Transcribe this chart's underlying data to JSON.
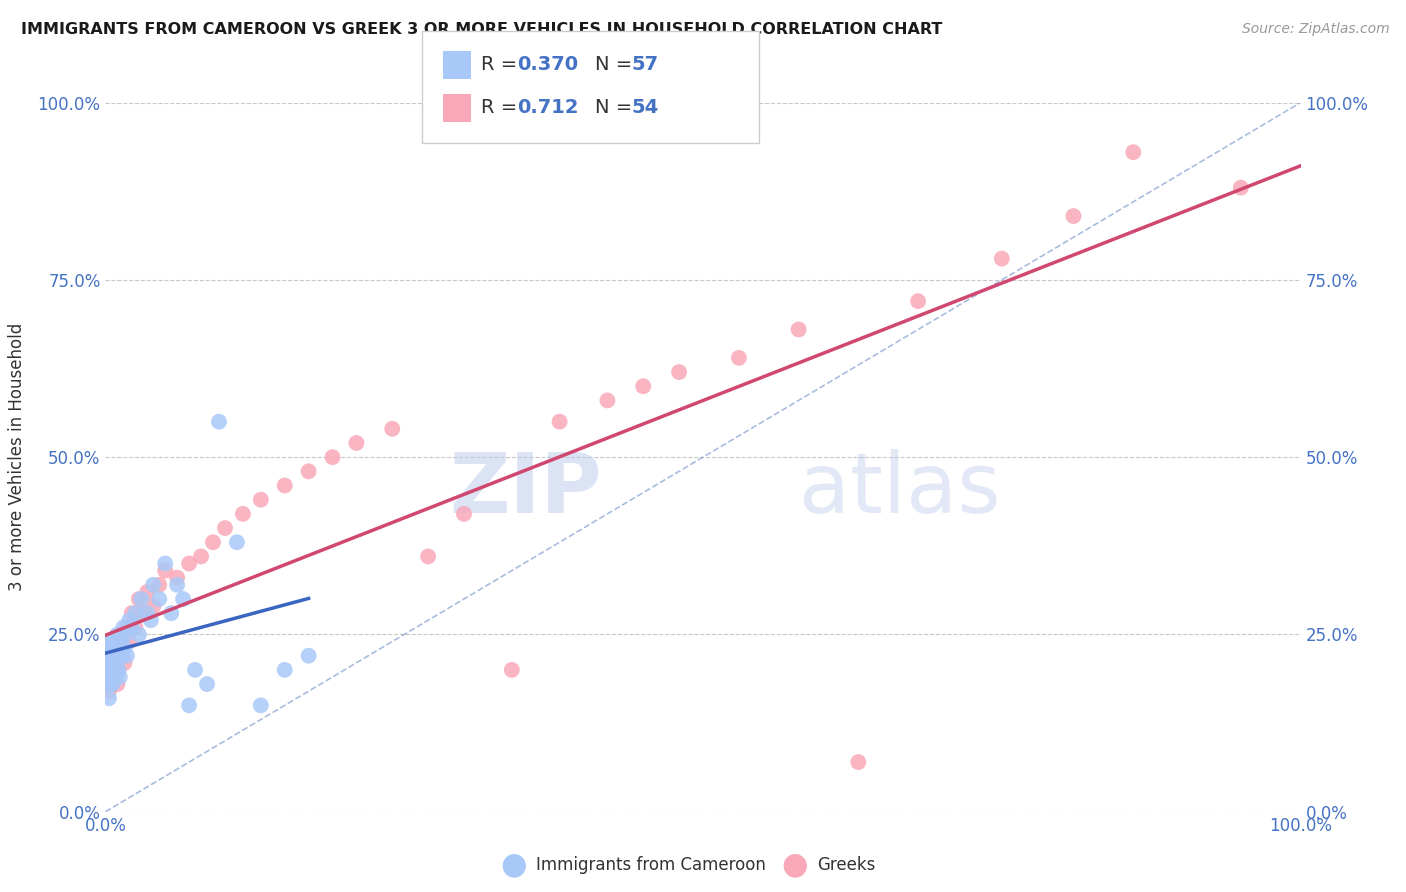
{
  "title": "IMMIGRANTS FROM CAMEROON VS GREEK 3 OR MORE VEHICLES IN HOUSEHOLD CORRELATION CHART",
  "source": "Source: ZipAtlas.com",
  "ylabel": "3 or more Vehicles in Household",
  "xlim": [
    0.0,
    1.0
  ],
  "ylim": [
    0.0,
    1.0
  ],
  "xtick_labels": [
    "0.0%",
    "100.0%"
  ],
  "xtick_positions": [
    0.0,
    1.0
  ],
  "ytick_labels": [
    "0.0%",
    "25.0%",
    "50.0%",
    "75.0%",
    "100.0%"
  ],
  "ytick_positions": [
    0.0,
    0.25,
    0.5,
    0.75,
    1.0
  ],
  "watermark_zip": "ZIP",
  "watermark_atlas": "atlas",
  "r1": "0.370",
  "n1": "57",
  "r2": "0.712",
  "n2": "54",
  "series1_color": "#a8c8f8",
  "series2_color": "#f8a8b8",
  "series1_label": "Immigrants from Cameroon",
  "series2_label": "Greeks",
  "series1_line_color": "#3a65c0",
  "series2_line_color": "#d04870",
  "diagonal_color": "#7090c8",
  "background_color": "#ffffff",
  "grid_color": "#c8c8c8",
  "tick_color": "#4472c4",
  "title_color": "#1a1a1a",
  "source_color": "#999999",
  "label_color": "#333333",
  "legend_edge_color": "#cccccc",
  "series1_x": [
    0.001,
    0.001,
    0.001,
    0.002,
    0.002,
    0.002,
    0.002,
    0.003,
    0.003,
    0.003,
    0.004,
    0.004,
    0.004,
    0.005,
    0.005,
    0.005,
    0.006,
    0.006,
    0.007,
    0.007,
    0.007,
    0.008,
    0.008,
    0.009,
    0.009,
    0.01,
    0.01,
    0.011,
    0.012,
    0.012,
    0.013,
    0.014,
    0.015,
    0.016,
    0.017,
    0.018,
    0.02,
    0.022,
    0.025,
    0.028,
    0.03,
    0.035,
    0.038,
    0.04,
    0.045,
    0.05,
    0.055,
    0.06,
    0.065,
    0.07,
    0.075,
    0.085,
    0.095,
    0.11,
    0.13,
    0.15,
    0.17
  ],
  "series1_y": [
    0.2,
    0.22,
    0.18,
    0.24,
    0.19,
    0.21,
    0.23,
    0.2,
    0.22,
    0.16,
    0.18,
    0.22,
    0.24,
    0.2,
    0.19,
    0.22,
    0.21,
    0.18,
    0.24,
    0.2,
    0.22,
    0.19,
    0.23,
    0.21,
    0.2,
    0.22,
    0.25,
    0.2,
    0.23,
    0.19,
    0.24,
    0.22,
    0.26,
    0.23,
    0.25,
    0.22,
    0.27,
    0.26,
    0.28,
    0.25,
    0.3,
    0.28,
    0.27,
    0.32,
    0.3,
    0.35,
    0.28,
    0.32,
    0.3,
    0.15,
    0.2,
    0.18,
    0.55,
    0.38,
    0.15,
    0.2,
    0.22
  ],
  "series2_x": [
    0.001,
    0.002,
    0.002,
    0.003,
    0.003,
    0.004,
    0.005,
    0.005,
    0.006,
    0.007,
    0.008,
    0.009,
    0.01,
    0.011,
    0.012,
    0.014,
    0.016,
    0.018,
    0.02,
    0.022,
    0.025,
    0.028,
    0.03,
    0.035,
    0.04,
    0.045,
    0.05,
    0.06,
    0.07,
    0.08,
    0.09,
    0.1,
    0.115,
    0.13,
    0.15,
    0.17,
    0.19,
    0.21,
    0.24,
    0.27,
    0.3,
    0.34,
    0.38,
    0.42,
    0.45,
    0.48,
    0.53,
    0.58,
    0.63,
    0.68,
    0.75,
    0.81,
    0.86,
    0.95
  ],
  "series2_y": [
    0.22,
    0.2,
    0.18,
    0.21,
    0.17,
    0.19,
    0.22,
    0.18,
    0.2,
    0.22,
    0.19,
    0.21,
    0.18,
    0.2,
    0.22,
    0.24,
    0.21,
    0.26,
    0.24,
    0.28,
    0.26,
    0.3,
    0.28,
    0.31,
    0.29,
    0.32,
    0.34,
    0.33,
    0.35,
    0.36,
    0.38,
    0.4,
    0.42,
    0.44,
    0.46,
    0.48,
    0.5,
    0.52,
    0.54,
    0.36,
    0.42,
    0.2,
    0.55,
    0.58,
    0.6,
    0.62,
    0.64,
    0.68,
    0.07,
    0.72,
    0.78,
    0.84,
    0.93,
    0.88
  ]
}
